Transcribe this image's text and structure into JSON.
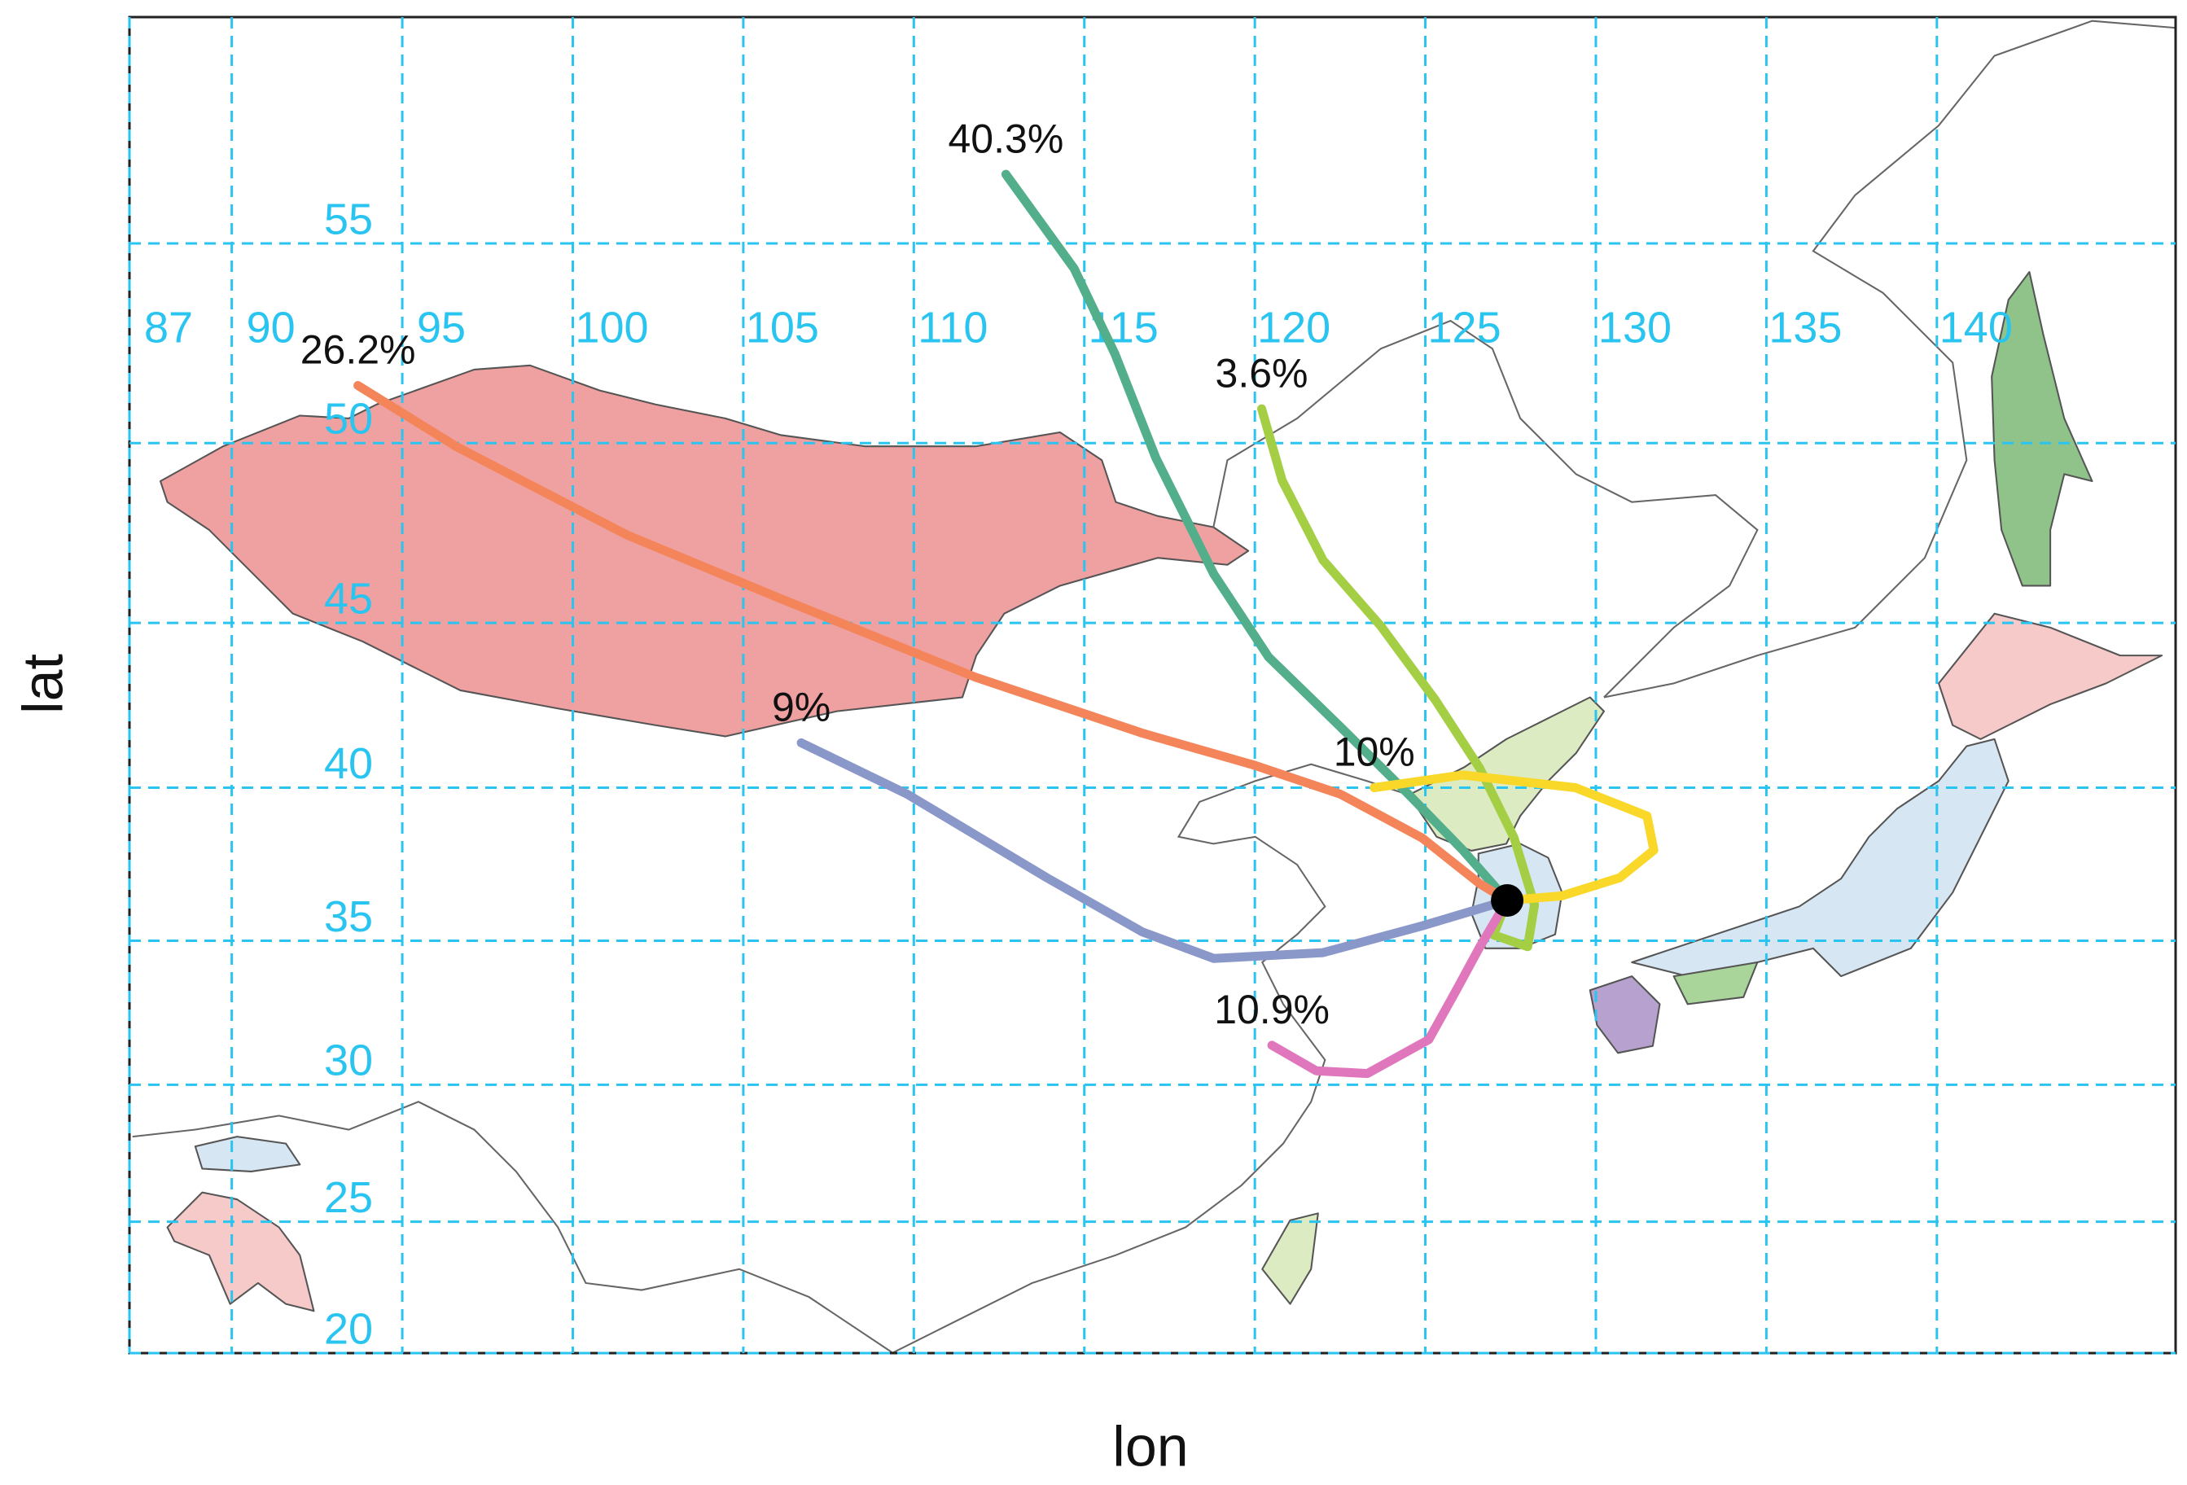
{
  "chart_data": {
    "type": "trajectory",
    "xlabel": "lon",
    "ylabel": "lat",
    "projection": "mercator",
    "grid": true,
    "xlim": [
      87,
      147
    ],
    "ylim": [
      20,
      60
    ],
    "xticks": [
      87,
      90,
      95,
      100,
      105,
      110,
      115,
      120,
      125,
      130,
      135,
      140
    ],
    "yticks": [
      20,
      25,
      30,
      35,
      40,
      45,
      50,
      55
    ],
    "receptor": {
      "x": 127.4,
      "y": 36.35,
      "color": "#000000"
    },
    "series": [
      {
        "name": "40.3%",
        "color": "#52ae8b",
        "x": [
          112.7,
          114.7,
          115.9,
          117.1,
          118.8,
          120.4,
          122.5,
          124.5,
          126.1,
          127.4
        ],
        "values": [
          56.6,
          54.4,
          52.3,
          49.6,
          46.4,
          44.0,
          41.9,
          39.8,
          38.0,
          36.35
        ]
      },
      {
        "name": "26.2%",
        "color": "#f4855a",
        "x": [
          93.7,
          96.6,
          101.6,
          106.1,
          111.8,
          116.7,
          120.0,
          122.5,
          124.9,
          126.6,
          127.4
        ],
        "values": [
          51.5,
          49.9,
          47.5,
          45.7,
          43.4,
          41.7,
          40.7,
          39.8,
          38.4,
          36.9,
          36.35
        ]
      },
      {
        "name": "3.6%",
        "color": "#a4cf45",
        "x": [
          120.2,
          120.8,
          122.0,
          123.7,
          125.3,
          126.6,
          127.6,
          128.2,
          128.0,
          127.0,
          127.4
        ],
        "values": [
          50.9,
          49.0,
          46.8,
          44.9,
          42.7,
          40.6,
          38.4,
          36.2,
          34.8,
          35.2,
          36.35
        ]
      },
      {
        "name": "10%",
        "color": "#f9d829",
        "x": [
          123.5,
          126.1,
          129.4,
          131.5,
          131.7,
          130.7,
          129.0,
          127.4
        ],
        "values": [
          40.0,
          40.4,
          40.0,
          39.1,
          38.0,
          37.1,
          36.5,
          36.35
        ]
      },
      {
        "name": "9%",
        "color": "#8a97c9",
        "x": [
          106.7,
          109.8,
          113.9,
          116.7,
          118.8,
          122.0,
          124.9,
          127.4
        ],
        "values": [
          41.4,
          39.8,
          37.1,
          35.3,
          34.4,
          34.6,
          35.5,
          36.35
        ]
      },
      {
        "name": "10.9%",
        "color": "#e077bd",
        "x": [
          120.5,
          121.8,
          123.3,
          125.1,
          125.9,
          126.6,
          127.4
        ],
        "values": [
          31.4,
          30.5,
          30.4,
          31.6,
          33.3,
          34.8,
          36.35
        ]
      }
    ]
  }
}
